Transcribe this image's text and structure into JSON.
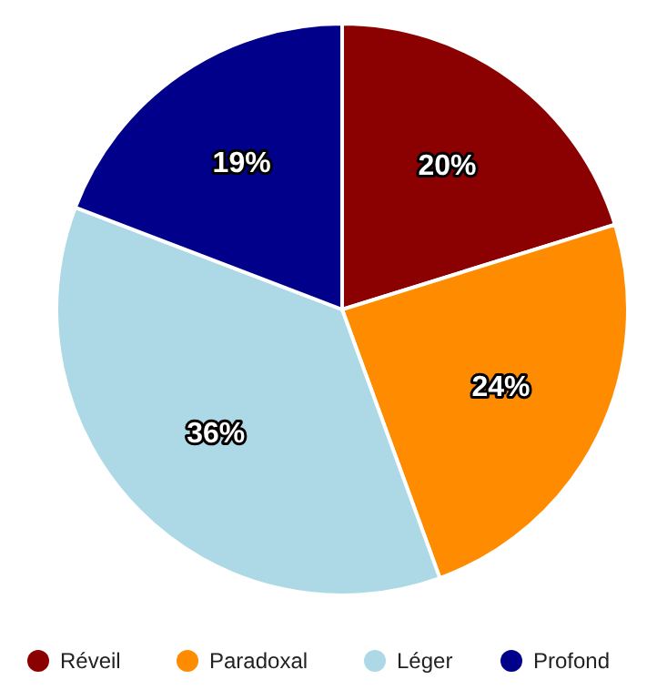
{
  "chart_data": {
    "type": "pie",
    "categories": [
      "Réveil",
      "Paradoxal",
      "Léger",
      "Profond"
    ],
    "values": [
      20,
      24,
      36,
      19
    ],
    "colors": [
      "#8b0000",
      "#ff8c00",
      "#add8e6",
      "#00008b"
    ],
    "value_labels": [
      "20%",
      "24%",
      "36%",
      "19%"
    ],
    "legend": "bottom"
  }
}
